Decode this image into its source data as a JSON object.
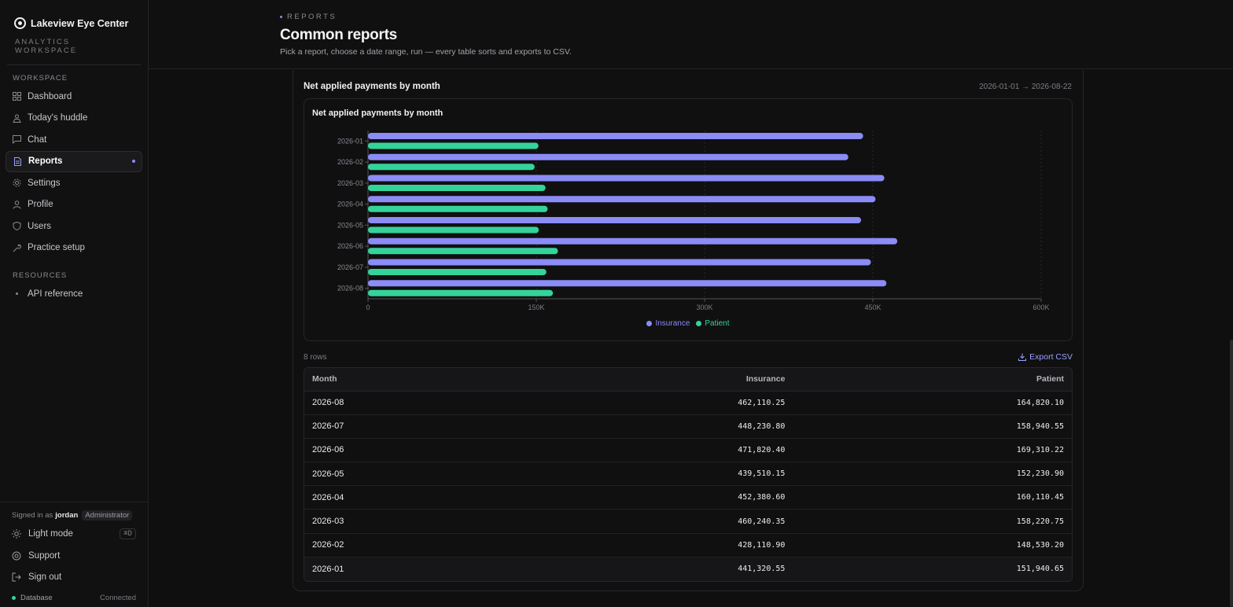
{
  "brand": {
    "name": "Lakeview Eye Center",
    "subtitle": "ANALYTICS WORKSPACE"
  },
  "sidebar": {
    "workspace_label": "WORKSPACE",
    "items": [
      {
        "label": "Dashboard",
        "icon": "grid-icon"
      },
      {
        "label": "Today's huddle",
        "icon": "huddle-icon"
      },
      {
        "label": "Chat",
        "icon": "chat-icon"
      },
      {
        "label": "Reports",
        "icon": "document-icon",
        "active": true
      },
      {
        "label": "Settings",
        "icon": "gear-icon"
      },
      {
        "label": "Profile",
        "icon": "user-icon"
      },
      {
        "label": "Users",
        "icon": "shield-icon"
      },
      {
        "label": "Practice setup",
        "icon": "wrench-icon"
      }
    ],
    "resources_label": "RESOURCES",
    "resources": [
      {
        "label": "API reference",
        "icon": "dot-icon"
      }
    ],
    "signed_in_prefix": "Signed in as",
    "user": "jordan",
    "role": "Administrator",
    "light_mode": "Light mode",
    "light_mode_shortcut": "⌘D",
    "support": "Support",
    "sign_out": "Sign out",
    "database_label": "Database",
    "database_status": "Connected"
  },
  "header": {
    "eyebrow": "REPORTS",
    "title": "Common reports",
    "subtitle": "Pick a report, choose a date range, run — every table sorts and exports to CSV."
  },
  "report": {
    "title": "Net applied payments by month",
    "range": "2026-01-01 → 2026-08-22",
    "row_count": "8 rows",
    "export_label": "Export CSV"
  },
  "colors": {
    "insurance": "#8b8cf6",
    "patient": "#34d399",
    "accent": "#9aa0ff"
  },
  "chart_data": {
    "type": "bar",
    "orientation": "horizontal",
    "title": "Net applied payments by month",
    "categories": [
      "2026-01",
      "2026-02",
      "2026-03",
      "2026-04",
      "2026-05",
      "2026-06",
      "2026-07",
      "2026-08"
    ],
    "series": [
      {
        "name": "Insurance",
        "values": [
          441320.55,
          428110.9,
          460240.35,
          452380.6,
          439510.15,
          471820.4,
          448230.8,
          462110.25
        ]
      },
      {
        "name": "Patient",
        "values": [
          151940.65,
          148530.2,
          158220.75,
          160110.45,
          152230.9,
          169310.22,
          158940.55,
          164820.1
        ]
      }
    ],
    "xlim": [
      0,
      600000
    ],
    "xticks": [
      0,
      150000,
      300000,
      450000,
      600000
    ],
    "xtick_labels": [
      "0",
      "150K",
      "300K",
      "450K",
      "600K"
    ],
    "grid": true,
    "legend_position": "bottom"
  },
  "table": {
    "columns": [
      "Month",
      "Insurance",
      "Patient"
    ],
    "rows": [
      [
        "2026-08",
        "462,110.25",
        "164,820.10"
      ],
      [
        "2026-07",
        "448,230.80",
        "158,940.55"
      ],
      [
        "2026-06",
        "471,820.40",
        "169,310.22"
      ],
      [
        "2026-05",
        "439,510.15",
        "152,230.90"
      ],
      [
        "2026-04",
        "452,380.60",
        "160,110.45"
      ],
      [
        "2026-03",
        "460,240.35",
        "158,220.75"
      ],
      [
        "2026-02",
        "428,110.90",
        "148,530.20"
      ],
      [
        "2026-01",
        "441,320.55",
        "151,940.65"
      ]
    ]
  }
}
